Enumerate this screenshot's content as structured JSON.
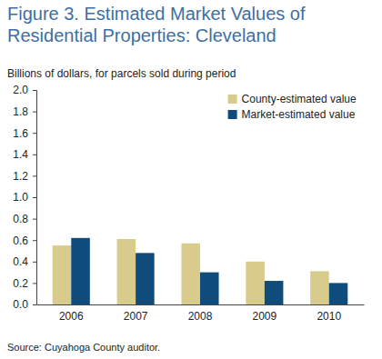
{
  "chart_data": {
    "type": "bar",
    "title": "Figure 3. Estimated Market Values of Residential Properties: Cleveland",
    "subtitle": "Billions of dollars, for parcels sold during period",
    "source": "Source: Cuyahoga County auditor.",
    "categories": [
      "2006",
      "2007",
      "2008",
      "2009",
      "2010"
    ],
    "series": [
      {
        "name": "County-estimated value",
        "color": "#d8cb8c",
        "values": [
          0.55,
          0.61,
          0.57,
          0.4,
          0.31
        ]
      },
      {
        "name": "Market-estimated value",
        "color": "#0f4c7c",
        "values": [
          0.62,
          0.48,
          0.3,
          0.22,
          0.2
        ]
      }
    ],
    "ylim": [
      0,
      2
    ],
    "yticks": [
      {
        "value": 0,
        "label": "0.0"
      },
      0.2,
      0.4,
      0.6,
      0.8,
      {
        "value": 1,
        "label": "1.0"
      },
      1.2,
      1.4,
      1.6,
      1.8,
      {
        "value": 2,
        "label": "2.0"
      }
    ],
    "grid": false,
    "legend": "upper right"
  }
}
